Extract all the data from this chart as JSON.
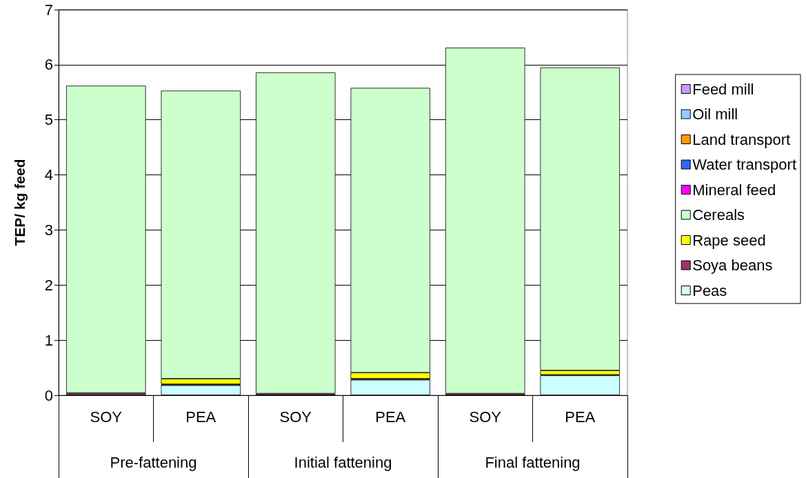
{
  "chart_data": {
    "type": "bar",
    "stacked": true,
    "ylabel": "TEP/ kg feed",
    "categories": [
      "SOY",
      "PEA",
      "SOY",
      "PEA",
      "SOY",
      "PEA"
    ],
    "annotations": [
      "Pre-fattening",
      "Initial fattening",
      "Final fattening"
    ],
    "series": [
      {
        "name": "Peas",
        "color": "#ccffff",
        "values": [
          null,
          0.18,
          null,
          0.28,
          null,
          0.36
        ]
      },
      {
        "name": "Soya beans",
        "color": "#993366",
        "values": [
          0.04,
          0.02,
          0.03,
          0.02,
          0.03,
          0.01
        ]
      },
      {
        "name": "Rape seed",
        "color": "#ffff00",
        "values": [
          null,
          0.1,
          null,
          0.11,
          null,
          0.08
        ]
      },
      {
        "name": "Cereals",
        "color": "#ccffcc",
        "values": [
          5.58,
          5.23,
          5.83,
          5.17,
          6.28,
          5.5
        ]
      },
      {
        "name": "Mineral feed",
        "color": "#ff00ff",
        "values": [
          null,
          null,
          null,
          null,
          null,
          null
        ]
      },
      {
        "name": "Water transport",
        "color": "#3366ff",
        "values": [
          null,
          null,
          null,
          null,
          null,
          null
        ]
      },
      {
        "name": "Land transport",
        "color": "#ff9900",
        "values": [
          null,
          null,
          null,
          null,
          null,
          null
        ]
      },
      {
        "name": "Oil mill",
        "color": "#99ccff",
        "values": [
          null,
          null,
          null,
          null,
          null,
          null
        ]
      },
      {
        "name": "Feed mill",
        "color": "#cc99ff",
        "values": [
          null,
          null,
          null,
          null,
          null,
          null
        ]
      }
    ],
    "ylim": [
      0,
      7
    ],
    "yticks": [
      0,
      1,
      2,
      3,
      4,
      5,
      6,
      7
    ],
    "grid": "y",
    "legend": "right"
  }
}
